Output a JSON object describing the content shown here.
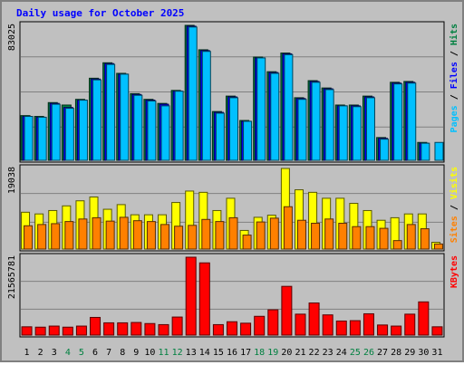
{
  "chart_data": {
    "type": "bar",
    "title": "Daily usage for October 2025",
    "categories": [
      "1",
      "2",
      "3",
      "4",
      "5",
      "6",
      "7",
      "8",
      "9",
      "10",
      "11",
      "12",
      "13",
      "14",
      "15",
      "16",
      "17",
      "18",
      "19",
      "20",
      "21",
      "22",
      "23",
      "24",
      "25",
      "26",
      "27",
      "28",
      "29",
      "30",
      "31"
    ],
    "weekend_days": [
      "4",
      "5",
      "11",
      "12",
      "18",
      "19",
      "25",
      "26"
    ],
    "panels": [
      {
        "id": "hits-files-pages",
        "max_label": "83025",
        "ymax": 83025,
        "legend": [
          "Pages",
          "Files",
          "Hits"
        ],
        "series": [
          {
            "name": "Hits",
            "color": "#008040",
            "values": [
              27500,
              27000,
              35500,
              34000,
              37500,
              50500,
              60000,
              53500,
              41000,
              37500,
              35000,
              43000,
              83025,
              68000,
              30000,
              39500,
              24500,
              63500,
              54500,
              66000,
              38500,
              49000,
              44500,
              34000,
              34000,
              39500,
              14000,
              48000,
              48500,
              11000,
              0
            ]
          },
          {
            "name": "Files",
            "color": "#0000ff",
            "values": [
              27000,
              26500,
              35000,
              32500,
              37000,
              50000,
              59500,
              53000,
              40500,
              37000,
              34500,
              42500,
              82500,
              67500,
              29500,
              39000,
              24000,
              63000,
              54000,
              65500,
              38000,
              48500,
              44000,
              33500,
              33500,
              39000,
              13500,
              47500,
              48000,
              10500,
              0
            ]
          },
          {
            "name": "Pages",
            "color": "#00c0ff",
            "values": [
              27000,
              26500,
              34500,
              32000,
              37000,
              49500,
              59000,
              53000,
              40000,
              36500,
              33500,
              42500,
              82000,
              67000,
              29000,
              38500,
              24000,
              63000,
              53500,
              65000,
              37500,
              48000,
              43500,
              33500,
              33000,
              38500,
              13000,
              47000,
              47500,
              10500,
              11000
            ]
          }
        ]
      },
      {
        "id": "visits-sites",
        "max_label": "19038",
        "ymax": 19038,
        "legend": [
          "Sites",
          "Visits"
        ],
        "series": [
          {
            "name": "Visits",
            "color": "#ffff00",
            "values": [
              8700,
              8300,
              9100,
              10200,
              11400,
              12300,
              9400,
              10500,
              8100,
              8100,
              8100,
              11000,
              13700,
              13400,
              9100,
              12000,
              4400,
              7500,
              8000,
              19038,
              14000,
              13400,
              12000,
              12000,
              10800,
              9100,
              6800,
              7400,
              8300,
              8300,
              1600
            ]
          },
          {
            "name": "Sites",
            "color": "#ff8000",
            "values": [
              5500,
              5800,
              6000,
              6500,
              7100,
              7400,
              6600,
              7500,
              6700,
              6500,
              5800,
              5400,
              5600,
              7000,
              6500,
              7400,
              3300,
              6400,
              7300,
              10000,
              6800,
              6100,
              7100,
              6100,
              5300,
              5300,
              4900,
              2000,
              5800,
              4800,
              1200
            ]
          }
        ]
      },
      {
        "id": "kbytes",
        "max_label": "21565781",
        "ymax": 21565781,
        "legend": [
          "KBytes"
        ],
        "series": [
          {
            "name": "KBytes",
            "color": "#ff0000",
            "values": [
              2300000,
              2200000,
              2500000,
              2200000,
              2500000,
              4900000,
              3400000,
              3400000,
              3500000,
              3200000,
              2900000,
              5000000,
              21565781,
              20000000,
              2900000,
              3700000,
              3300000,
              5200000,
              7000000,
              13500000,
              5800000,
              8900000,
              5600000,
              3900000,
              4000000,
              5900000,
              2800000,
              2500000,
              5800000,
              9200000,
              2300000
            ]
          }
        ]
      }
    ]
  }
}
